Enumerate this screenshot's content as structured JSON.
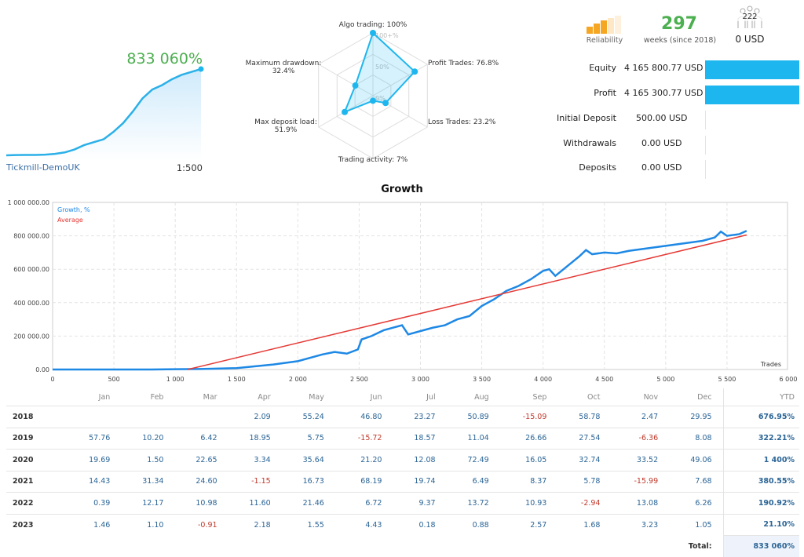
{
  "summary": {
    "growth_pct": "833 060%",
    "server": "Tickmill-DemoUK",
    "leverage": "1:500"
  },
  "mini_chart": {
    "x": [
      0,
      1,
      2,
      3,
      4,
      5,
      6,
      7,
      8,
      9,
      10,
      11,
      12,
      13,
      14,
      15,
      16,
      17,
      18,
      19,
      20
    ],
    "y": [
      0,
      0.2,
      0.3,
      0.3,
      0.5,
      1,
      2,
      4,
      7,
      9,
      11,
      16,
      22,
      30,
      39,
      45,
      48,
      52,
      55,
      57,
      59
    ]
  },
  "radar": {
    "axes": [
      {
        "label": "Algo trading: 100%",
        "value": 100
      },
      {
        "label": "Profit Trades: 76.8%",
        "value": 76.8
      },
      {
        "label": "Loss Trades: 23.2%",
        "value": 23.2
      },
      {
        "label": "Trading activity: 7%",
        "value": 7
      },
      {
        "label": "Max deposit load: 51.9%",
        "value": 51.9
      },
      {
        "label": "Maximum drawdown: 32.4%",
        "value": 32.4
      }
    ],
    "scale_labels": [
      "100+%",
      "50%",
      "0%"
    ],
    "color": "#1eb6ee"
  },
  "header_stats": {
    "reliability_label": "Reliability",
    "reliability_level": 3,
    "reliability_max": 5,
    "weeks": "297",
    "weeks_label": "weeks (since 2018)",
    "subscribers": "222",
    "subscription_price": "0 USD"
  },
  "account": [
    {
      "label": "Equity",
      "value": "4 165 800.77 USD",
      "fill": 1.0
    },
    {
      "label": "Profit",
      "value": "4 165 300.77 USD",
      "fill": 1.0
    },
    {
      "label": "Initial Deposit",
      "value": "500.00 USD",
      "fill": 0
    },
    {
      "label": "Withdrawals",
      "value": "0.00 USD",
      "fill": 0
    },
    {
      "label": "Deposits",
      "value": "0.00 USD",
      "fill": 0
    }
  ],
  "chart_data": {
    "type": "line",
    "title": "Growth",
    "xlabel": "Trades",
    "xlim": [
      0,
      6000
    ],
    "ylim": [
      0,
      1000000
    ],
    "x_ticks": [
      "0",
      "500",
      "1 000",
      "1 500",
      "2 000",
      "2 500",
      "3 000",
      "3 500",
      "4 000",
      "4 500",
      "5 000",
      "5 500",
      "6 000"
    ],
    "y_ticks": [
      "0.00",
      "200 000.00",
      "400 000.00",
      "600 000.00",
      "800 000.00",
      "1 000 000.00"
    ],
    "grid": true,
    "legend": "top-left",
    "series": [
      {
        "name": "Growth, %",
        "color": "#1e88e5",
        "x": [
          0,
          800,
          1000,
          1200,
          1500,
          1800,
          2000,
          2200,
          2300,
          2400,
          2490,
          2520,
          2600,
          2700,
          2800,
          2850,
          2900,
          3000,
          3100,
          3200,
          3300,
          3400,
          3500,
          3600,
          3700,
          3800,
          3900,
          4000,
          4050,
          4100,
          4200,
          4300,
          4350,
          4400,
          4500,
          4600,
          4700,
          4800,
          4900,
          5000,
          5100,
          5200,
          5300,
          5400,
          5450,
          5500,
          5600,
          5660
        ],
        "y": [
          0,
          0,
          2000,
          3000,
          8000,
          30000,
          50000,
          90000,
          105000,
          95000,
          120000,
          180000,
          200000,
          235000,
          255000,
          265000,
          210000,
          230000,
          250000,
          265000,
          300000,
          320000,
          380000,
          420000,
          470000,
          500000,
          540000,
          590000,
          600000,
          560000,
          620000,
          680000,
          715000,
          690000,
          700000,
          695000,
          710000,
          720000,
          730000,
          740000,
          750000,
          760000,
          770000,
          790000,
          825000,
          800000,
          810000,
          830000
        ]
      },
      {
        "name": "Average",
        "color": "#e53935",
        "x": [
          1100,
          5660
        ],
        "y": [
          0,
          805000
        ]
      }
    ]
  },
  "monthly": {
    "headers": [
      "",
      "Jan",
      "Feb",
      "Mar",
      "Apr",
      "May",
      "Jun",
      "Jul",
      "Aug",
      "Sep",
      "Oct",
      "Nov",
      "Dec",
      "YTD"
    ],
    "rows": [
      {
        "year": "2018",
        "values": [
          "",
          "",
          "",
          "2.09",
          "55.24",
          "46.80",
          "23.27",
          "50.89",
          "-15.09",
          "58.78",
          "2.47",
          "29.95"
        ],
        "ytd": "676.95%"
      },
      {
        "year": "2019",
        "values": [
          "57.76",
          "10.20",
          "6.42",
          "18.95",
          "5.75",
          "-15.72",
          "18.57",
          "11.04",
          "26.66",
          "27.54",
          "-6.36",
          "8.08"
        ],
        "ytd": "322.21%"
      },
      {
        "year": "2020",
        "values": [
          "19.69",
          "1.50",
          "22.65",
          "3.34",
          "35.64",
          "21.20",
          "12.08",
          "72.49",
          "16.05",
          "32.74",
          "33.52",
          "49.06"
        ],
        "ytd": "1 400%"
      },
      {
        "year": "2021",
        "values": [
          "14.43",
          "31.34",
          "24.60",
          "-1.15",
          "16.73",
          "68.19",
          "19.74",
          "6.49",
          "8.37",
          "5.78",
          "-15.99",
          "7.68"
        ],
        "ytd": "380.55%"
      },
      {
        "year": "2022",
        "values": [
          "0.39",
          "12.17",
          "10.98",
          "11.60",
          "21.46",
          "6.72",
          "9.37",
          "13.72",
          "10.93",
          "-2.94",
          "13.08",
          "6.26"
        ],
        "ytd": "190.92%"
      },
      {
        "year": "2023",
        "values": [
          "1.46",
          "1.10",
          "-0.91",
          "2.18",
          "1.55",
          "4.43",
          "0.18",
          "0.88",
          "2.57",
          "1.68",
          "3.23",
          "1.05"
        ],
        "ytd": "21.10%"
      }
    ],
    "total_label": "Total:",
    "total_value": "833 060%"
  }
}
